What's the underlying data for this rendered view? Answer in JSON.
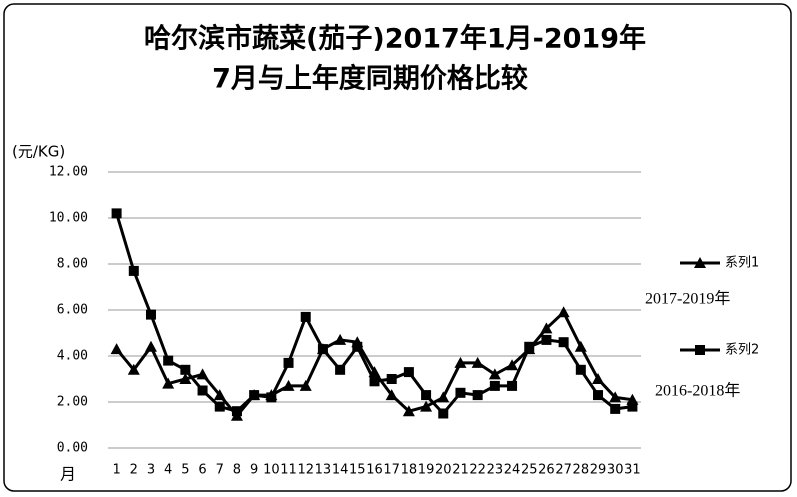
{
  "chart_data": {
    "type": "line",
    "title": "哈尔滨市蔬菜(茄子)2017年1月-2019年",
    "subtitle": "7月与上年度同期价格比较",
    "y_label": "(元/KG)",
    "x_label": "月",
    "categories": [
      "1",
      "2",
      "3",
      "4",
      "5",
      "6",
      "7",
      "8",
      "9",
      "10",
      "11",
      "12",
      "13",
      "14",
      "15",
      "16",
      "17",
      "18",
      "19",
      "20",
      "21",
      "22",
      "23",
      "24",
      "25",
      "26",
      "27",
      "28",
      "29",
      "30",
      "31"
    ],
    "series": [
      {
        "name": "系列1",
        "marker": "triangle",
        "color": "#000000",
        "annotation": "2017-2019年",
        "values": [
          4.3,
          3.4,
          4.4,
          2.8,
          3.0,
          3.2,
          2.3,
          1.4,
          2.3,
          2.3,
          2.7,
          2.7,
          4.3,
          4.7,
          4.6,
          3.3,
          2.3,
          1.6,
          1.8,
          2.2,
          3.7,
          3.7,
          3.2,
          3.6,
          4.3,
          5.2,
          5.9,
          4.4,
          3.0,
          2.2,
          2.1
        ]
      },
      {
        "name": "系列2",
        "marker": "square",
        "color": "#000000",
        "annotation": "2016-2018年",
        "values": [
          10.2,
          7.7,
          5.8,
          3.8,
          3.4,
          2.5,
          1.8,
          1.6,
          2.3,
          2.2,
          3.7,
          5.7,
          4.3,
          3.4,
          4.4,
          2.9,
          3.0,
          3.3,
          2.3,
          1.5,
          2.4,
          2.3,
          2.7,
          2.7,
          4.4,
          4.7,
          4.6,
          3.4,
          2.3,
          1.7,
          1.8
        ]
      }
    ],
    "ylim": [
      0,
      12
    ],
    "yticks": [
      {
        "value": 0,
        "label": "0.00"
      },
      {
        "value": 2,
        "label": "2.00"
      },
      {
        "value": 4,
        "label": "4.00"
      },
      {
        "value": 6,
        "label": "6.00"
      },
      {
        "value": 8,
        "label": "8.00"
      },
      {
        "value": 10,
        "label": "10.00"
      },
      {
        "value": 12,
        "label": "12.00"
      }
    ],
    "grid": true
  }
}
